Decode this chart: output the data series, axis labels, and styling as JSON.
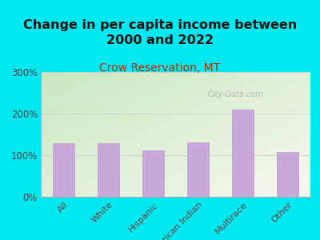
{
  "title": "Change in per capita income between\n2000 and 2022",
  "subtitle": "Crow Reservation, MT",
  "subtitle_color": "#b03000",
  "categories": [
    "All",
    "White",
    "Hispanic",
    "American Indian",
    "Multirace",
    "Other"
  ],
  "values": [
    128,
    128,
    112,
    130,
    210,
    108
  ],
  "bar_color": "#c8a8d8",
  "ylim": [
    0,
    300
  ],
  "yticks": [
    0,
    100,
    200,
    300
  ],
  "ytick_labels": [
    "0%",
    "100%",
    "200%",
    "300%"
  ],
  "background_outer": "#00e8f0",
  "background_inner_topleft": "#c8e8c0",
  "background_inner_bottomright": "#f8f8f0",
  "watermark": "City-Data.com",
  "title_fontsize": 11.5,
  "subtitle_fontsize": 10
}
